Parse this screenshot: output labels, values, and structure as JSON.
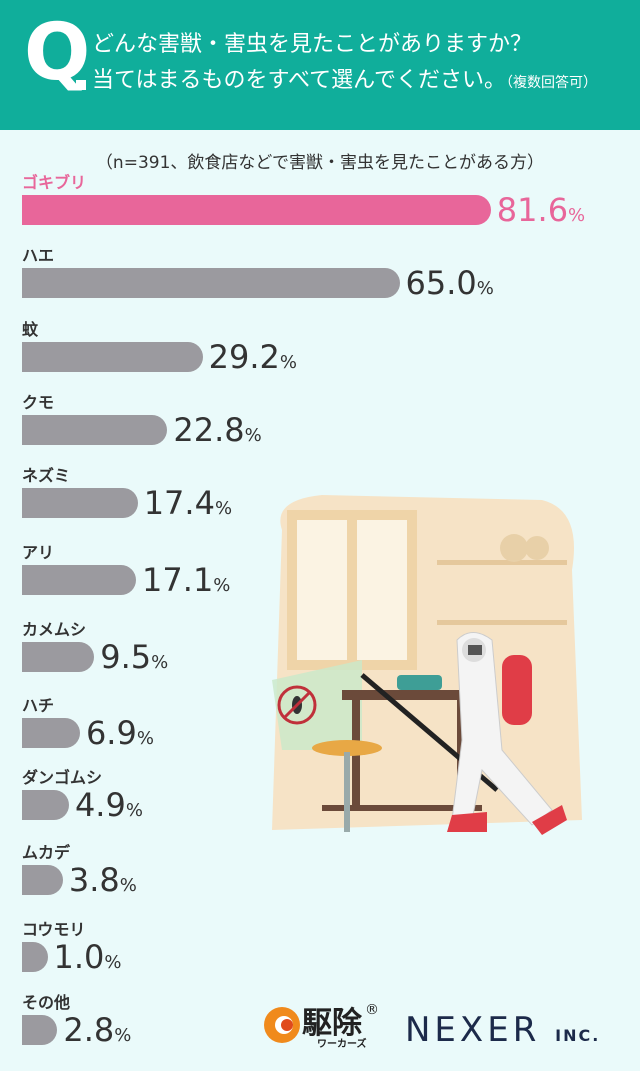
{
  "header": {
    "q": "Q",
    "line1": "どんな害獣・害虫を見たことがありますか？",
    "line2": "当てはまるものをすべて選んでください。",
    "note": "（複数回答可）"
  },
  "subtitle": "（n=391、飲食店などで害獣・害虫を見たことがある方）",
  "colors": {
    "header": "#10ae9b",
    "highlight": "#e8669a",
    "bar": "#9b9a9f",
    "background": "#eafafa"
  },
  "chart_data": {
    "type": "bar",
    "orientation": "horizontal",
    "unit": "%",
    "categories": [
      "ゴキブリ",
      "ハエ",
      "蚊",
      "クモ",
      "ネズミ",
      "アリ",
      "カメムシ",
      "ハチ",
      "ダンゴムシ",
      "ムカデ",
      "コウモリ",
      "その他"
    ],
    "values": [
      81.6,
      65.0,
      29.2,
      22.8,
      17.4,
      17.1,
      9.5,
      6.9,
      4.9,
      3.8,
      1.0,
      2.8
    ],
    "highlighted": "ゴキブリ"
  },
  "logos": {
    "kujo": "駆除",
    "kujo_sub": "ワーカーズ",
    "kujo_mark": "®",
    "nexer": "NEXER",
    "nexer_suffix": "INC."
  }
}
